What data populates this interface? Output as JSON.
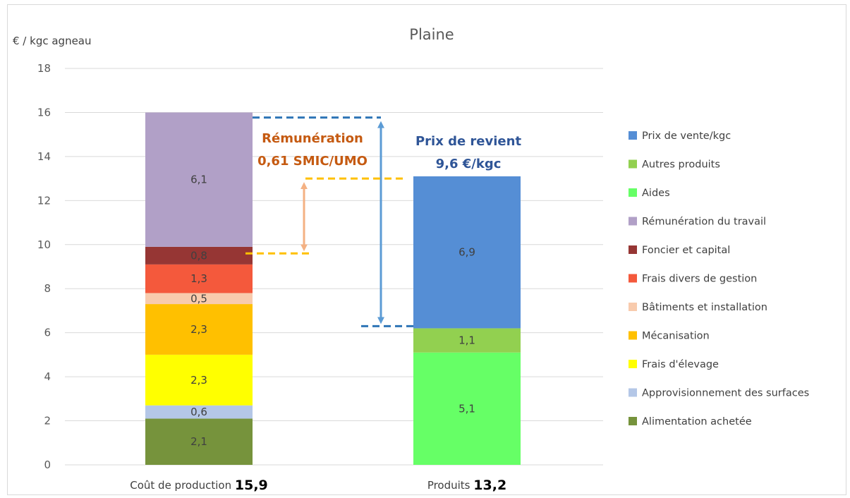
{
  "chart_data": {
    "type": "bar",
    "stacked": true,
    "title": "Plaine",
    "ylabel": "€ / kgc agneau",
    "xlabel": "",
    "ylim": [
      0,
      18
    ],
    "yticks": [
      0,
      2,
      4,
      6,
      8,
      10,
      12,
      14,
      16,
      18
    ],
    "grid": true,
    "legend_position": "right",
    "categories": [
      {
        "label": "Coût de production",
        "total_label": "15,9"
      },
      {
        "label": "Produits",
        "total_label": "13,2"
      }
    ],
    "series": [
      {
        "name": "Alimentation achetée",
        "color": "#76933c",
        "values": [
          2.1,
          0
        ],
        "labels": [
          "2,1",
          ""
        ]
      },
      {
        "name": "Approvisionnement des surfaces",
        "color": "#b4c7e7",
        "values": [
          0.6,
          0
        ],
        "labels": [
          "0,6",
          ""
        ]
      },
      {
        "name": "Frais d'élevage",
        "color": "#ffff00",
        "values": [
          2.3,
          0
        ],
        "labels": [
          "2,3",
          ""
        ]
      },
      {
        "name": "Mécanisation",
        "color": "#ffc000",
        "values": [
          2.3,
          0
        ],
        "labels": [
          "2,3",
          ""
        ]
      },
      {
        "name": "Bâtiments et installation",
        "color": "#f8cbad",
        "values": [
          0.5,
          0
        ],
        "labels": [
          "0,5",
          ""
        ]
      },
      {
        "name": "Frais divers de gestion",
        "color": "#f4593c",
        "values": [
          1.3,
          0
        ],
        "labels": [
          "1,3",
          ""
        ]
      },
      {
        "name": "Foncier et capital",
        "color": "#963634",
        "values": [
          0.8,
          0
        ],
        "labels": [
          "0,8",
          ""
        ]
      },
      {
        "name": "Rémunération du travail",
        "color": "#b1a0c7",
        "values": [
          6.1,
          0
        ],
        "labels": [
          "6,1",
          ""
        ]
      },
      {
        "name": "Aides",
        "color": "#66ff66",
        "values": [
          0,
          5.1
        ],
        "labels": [
          "",
          "5,1"
        ]
      },
      {
        "name": "Autres produits",
        "color": "#92d050",
        "values": [
          0,
          1.1
        ],
        "labels": [
          "",
          "1,1"
        ]
      },
      {
        "name": "Prix de vente/kgc",
        "color": "#558ed5",
        "values": [
          0,
          6.9
        ],
        "labels": [
          "",
          "6,9"
        ]
      }
    ],
    "annotations": {
      "remuneration": {
        "line1": "Rémunération",
        "line2": "0,61 SMIC/UMO",
        "color": "#c55a11",
        "arrow_color": "#f4b183",
        "from": 9.6,
        "to": 13.0
      },
      "prix_revient": {
        "line1": "Prix de revient",
        "line2": "9,6 €/kgc",
        "color": "#2f5597",
        "arrow_color": "#5b9bd5",
        "from": 6.2,
        "to": 15.9
      }
    }
  }
}
